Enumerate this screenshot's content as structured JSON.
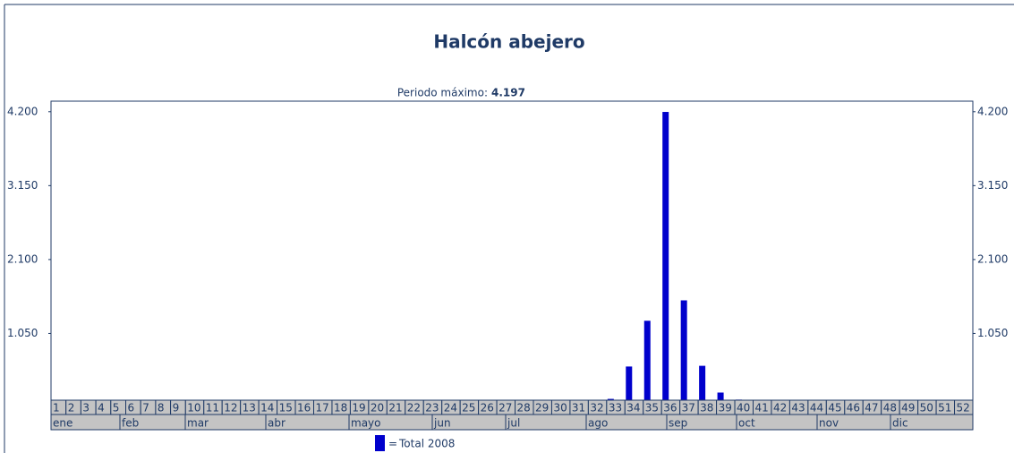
{
  "chart_data": {
    "type": "bar",
    "title": "Halcón abejero",
    "subtitle": "Periodo máximo:",
    "peak": 4197,
    "peak_label": "4.197",
    "categories": [
      "1",
      "2",
      "3",
      "4",
      "5",
      "6",
      "7",
      "8",
      "9",
      "10",
      "11",
      "12",
      "13",
      "14",
      "15",
      "16",
      "17",
      "18",
      "19",
      "20",
      "21",
      "22",
      "23",
      "24",
      "25",
      "26",
      "27",
      "28",
      "29",
      "30",
      "31",
      "32",
      "33",
      "34",
      "35",
      "36",
      "37",
      "38",
      "39",
      "40",
      "41",
      "42",
      "43",
      "44",
      "45",
      "46",
      "47",
      "48",
      "49",
      "50",
      "51",
      "52"
    ],
    "months": [
      "ene",
      "feb",
      "mar",
      "abr",
      "mayo",
      "jun",
      "jul",
      "ago",
      "sep",
      "oct",
      "nov",
      "dic"
    ],
    "series": [
      {
        "name": "Total 2008",
        "color": "#0000cc",
        "values": [
          0,
          0,
          0,
          0,
          0,
          0,
          0,
          0,
          0,
          0,
          0,
          0,
          0,
          0,
          0,
          0,
          0,
          0,
          100,
          0,
          0,
          0,
          0,
          0,
          0,
          0,
          0,
          0,
          0,
          0,
          0,
          0,
          120,
          580,
          1230,
          4197,
          1520,
          590,
          210,
          110,
          0,
          0,
          0,
          0,
          0,
          0,
          0,
          0,
          0,
          0,
          0,
          0
        ]
      }
    ],
    "legend_prefix": "=",
    "ylim": [
      0,
      4350
    ],
    "yticks": [
      {
        "value": 1050,
        "label": "1.050"
      },
      {
        "value": 2100,
        "label": "2.100"
      },
      {
        "value": 3150,
        "label": "3.150"
      },
      {
        "value": 4200,
        "label": "4.200"
      }
    ],
    "y2lim": [
      0,
      4350
    ],
    "y2ticks": [
      {
        "value": 1050,
        "label": "1.050"
      },
      {
        "value": 2100,
        "label": "2.100"
      },
      {
        "value": 3150,
        "label": "3.150"
      },
      {
        "value": 4200,
        "label": "4.200"
      }
    ]
  }
}
